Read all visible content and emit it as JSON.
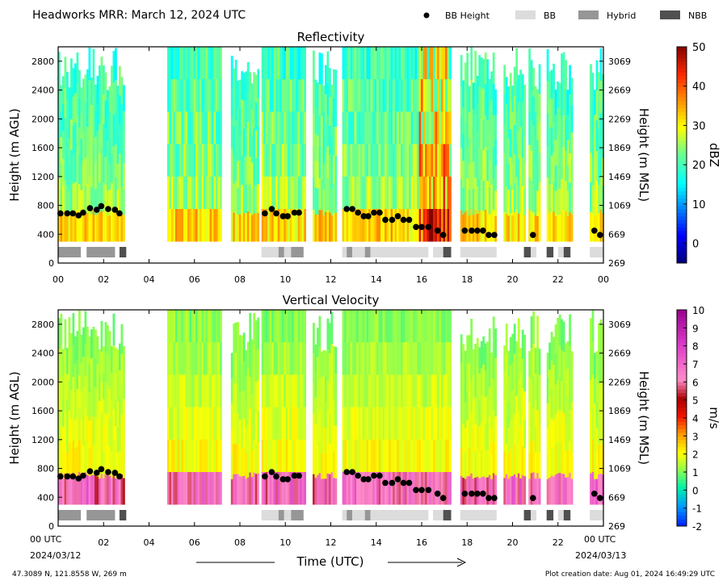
{
  "title": "Headworks MRR:  March 12, 2024 UTC",
  "legend": [
    {
      "label": "BB Height",
      "symbol": "dot",
      "color": "#000000"
    },
    {
      "label": "BB",
      "symbol": "bar",
      "color": "#dcdcdc"
    },
    {
      "label": "Hybrid",
      "symbol": "bar",
      "color": "#969696"
    },
    {
      "label": "NBB",
      "symbol": "bar",
      "color": "#505050"
    }
  ],
  "footer": {
    "location": "47.3089 N, 121.8558 W, 269 m",
    "created": "Plot creation date: Aug 01, 2024 16:49:29 UTC",
    "xlabel": "Time (UTC)",
    "start_time": "00 UTC",
    "start_date": "2024/03/12",
    "end_time": "00 UTC",
    "end_date": "2024/03/13"
  },
  "chart_data": [
    {
      "type": "heatmap",
      "title": "Reflectivity",
      "ylabel": "Height (m AGL)",
      "y2label": "Height (m MSL)",
      "colorbar_label": "dBZ",
      "x_ticks": [
        "00",
        "02",
        "04",
        "06",
        "08",
        "10",
        "12",
        "14",
        "16",
        "18",
        "20",
        "22",
        "00"
      ],
      "xlim": [
        0,
        24
      ],
      "ylim": [
        0,
        3000
      ],
      "y_ticks": [
        0,
        400,
        800,
        1200,
        1600,
        2000,
        2400,
        2800
      ],
      "y2_ticks": [
        "269",
        "669",
        "1069",
        "1469",
        "1869",
        "2269",
        "2669",
        "3069"
      ],
      "colorbar_range": [
        -5,
        50
      ],
      "colorbar_ticks": [
        0,
        10,
        20,
        30,
        40,
        50
      ],
      "colorscale": "jet",
      "echo_segments": [
        {
          "start": 0.0,
          "end": 2.85,
          "top": 3000
        },
        {
          "start": 4.8,
          "end": 7.2,
          "top": 3000
        },
        {
          "start": 7.6,
          "end": 8.8,
          "top": 3000
        },
        {
          "start": 8.95,
          "end": 10.85,
          "top": 3000
        },
        {
          "start": 11.2,
          "end": 12.2,
          "top": 3000
        },
        {
          "start": 12.5,
          "end": 17.3,
          "top": 3000
        },
        {
          "start": 17.7,
          "end": 19.3,
          "top": 3000
        },
        {
          "start": 19.6,
          "end": 20.5,
          "top": 3000
        },
        {
          "start": 20.7,
          "end": 21.2,
          "top": 3000
        },
        {
          "start": 21.5,
          "end": 22.6,
          "top": 3000
        },
        {
          "start": 23.4,
          "end": 24.0,
          "top": 3000
        }
      ],
      "bb_height": [
        [
          0.1,
          690
        ],
        [
          0.4,
          690
        ],
        [
          0.65,
          690
        ],
        [
          0.9,
          660
        ],
        [
          1.1,
          700
        ],
        [
          1.4,
          760
        ],
        [
          1.7,
          740
        ],
        [
          1.9,
          790
        ],
        [
          2.2,
          750
        ],
        [
          2.5,
          740
        ],
        [
          2.7,
          690
        ],
        [
          9.1,
          690
        ],
        [
          9.4,
          750
        ],
        [
          9.6,
          690
        ],
        [
          9.9,
          650
        ],
        [
          10.1,
          650
        ],
        [
          10.4,
          700
        ],
        [
          10.6,
          700
        ],
        [
          12.7,
          750
        ],
        [
          12.95,
          750
        ],
        [
          13.2,
          700
        ],
        [
          13.45,
          650
        ],
        [
          13.65,
          650
        ],
        [
          13.9,
          700
        ],
        [
          14.15,
          700
        ],
        [
          14.4,
          600
        ],
        [
          14.7,
          600
        ],
        [
          14.95,
          650
        ],
        [
          15.2,
          600
        ],
        [
          15.45,
          600
        ],
        [
          15.75,
          500
        ],
        [
          16.0,
          500
        ],
        [
          16.3,
          500
        ],
        [
          16.7,
          450
        ],
        [
          16.95,
          390
        ],
        [
          17.9,
          450
        ],
        [
          18.2,
          450
        ],
        [
          18.45,
          450
        ],
        [
          18.7,
          450
        ],
        [
          18.95,
          390
        ],
        [
          19.2,
          390
        ],
        [
          20.9,
          390
        ],
        [
          23.6,
          450
        ],
        [
          23.85,
          390
        ]
      ],
      "bb_type_bars": [
        {
          "start": 0.0,
          "end": 1.0,
          "type": "Hybrid"
        },
        {
          "start": 1.25,
          "end": 2.5,
          "type": "Hybrid"
        },
        {
          "start": 2.7,
          "end": 3.0,
          "type": "NBB"
        },
        {
          "start": 8.95,
          "end": 9.7,
          "type": "BB"
        },
        {
          "start": 9.7,
          "end": 9.95,
          "type": "Hybrid"
        },
        {
          "start": 9.95,
          "end": 10.25,
          "type": "BB"
        },
        {
          "start": 10.25,
          "end": 10.8,
          "type": "Hybrid"
        },
        {
          "start": 12.5,
          "end": 12.7,
          "type": "BB"
        },
        {
          "start": 12.7,
          "end": 12.95,
          "type": "Hybrid"
        },
        {
          "start": 12.95,
          "end": 13.5,
          "type": "BB"
        },
        {
          "start": 13.5,
          "end": 13.75,
          "type": "Hybrid"
        },
        {
          "start": 13.75,
          "end": 16.3,
          "type": "BB"
        },
        {
          "start": 16.5,
          "end": 16.95,
          "type": "BB"
        },
        {
          "start": 16.95,
          "end": 17.3,
          "type": "NBB"
        },
        {
          "start": 17.7,
          "end": 19.3,
          "type": "BB"
        },
        {
          "start": 20.5,
          "end": 20.8,
          "type": "NBB"
        },
        {
          "start": 20.8,
          "end": 21.05,
          "type": "BB"
        },
        {
          "start": 21.5,
          "end": 21.8,
          "type": "NBB"
        },
        {
          "start": 22.0,
          "end": 22.25,
          "type": "BB"
        },
        {
          "start": 22.25,
          "end": 22.55,
          "type": "NBB"
        },
        {
          "start": 23.4,
          "end": 24.0,
          "type": "BB"
        }
      ]
    },
    {
      "type": "heatmap",
      "title": "Vertical Velocity",
      "ylabel": "Height (m AGL)",
      "y2label": "Height (m MSL)",
      "colorbar_label": "m/s",
      "x_ticks": [
        "",
        "02",
        "04",
        "06",
        "08",
        "10",
        "12",
        "14",
        "16",
        "18",
        "20",
        "22",
        ""
      ],
      "xlim": [
        0,
        24
      ],
      "ylim": [
        0,
        3000
      ],
      "y_ticks": [
        0,
        400,
        800,
        1200,
        1600,
        2000,
        2400,
        2800
      ],
      "y2_ticks": [
        "269",
        "669",
        "1069",
        "1469",
        "1869",
        "2269",
        "2669",
        "3069"
      ],
      "colorbar_range": [
        -2,
        10
      ],
      "colorbar_ticks": [
        -2,
        -1,
        0,
        1,
        2,
        3,
        4,
        5,
        6,
        7,
        8,
        9,
        10
      ],
      "colorscale": "velocity",
      "echo_segments": [
        {
          "start": 0.0,
          "end": 2.85,
          "top": 3000
        },
        {
          "start": 4.8,
          "end": 7.2,
          "top": 3000
        },
        {
          "start": 7.6,
          "end": 8.8,
          "top": 3000
        },
        {
          "start": 8.95,
          "end": 10.85,
          "top": 3000
        },
        {
          "start": 11.2,
          "end": 12.2,
          "top": 3000
        },
        {
          "start": 12.5,
          "end": 17.3,
          "top": 3000
        },
        {
          "start": 17.7,
          "end": 19.3,
          "top": 3000
        },
        {
          "start": 19.6,
          "end": 20.5,
          "top": 3000
        },
        {
          "start": 20.7,
          "end": 21.2,
          "top": 3000
        },
        {
          "start": 21.5,
          "end": 22.6,
          "top": 3000
        },
        {
          "start": 23.4,
          "end": 24.0,
          "top": 3000
        }
      ],
      "bb_height": [
        [
          0.1,
          690
        ],
        [
          0.4,
          690
        ],
        [
          0.65,
          690
        ],
        [
          0.9,
          660
        ],
        [
          1.1,
          700
        ],
        [
          1.4,
          760
        ],
        [
          1.7,
          740
        ],
        [
          1.9,
          790
        ],
        [
          2.2,
          750
        ],
        [
          2.5,
          740
        ],
        [
          2.7,
          690
        ],
        [
          9.1,
          690
        ],
        [
          9.4,
          750
        ],
        [
          9.6,
          690
        ],
        [
          9.9,
          650
        ],
        [
          10.1,
          650
        ],
        [
          10.4,
          700
        ],
        [
          10.6,
          700
        ],
        [
          12.7,
          750
        ],
        [
          12.95,
          750
        ],
        [
          13.2,
          700
        ],
        [
          13.45,
          650
        ],
        [
          13.65,
          650
        ],
        [
          13.9,
          700
        ],
        [
          14.15,
          700
        ],
        [
          14.4,
          600
        ],
        [
          14.7,
          600
        ],
        [
          14.95,
          650
        ],
        [
          15.2,
          600
        ],
        [
          15.45,
          600
        ],
        [
          15.75,
          500
        ],
        [
          16.0,
          500
        ],
        [
          16.3,
          500
        ],
        [
          16.7,
          450
        ],
        [
          16.95,
          390
        ],
        [
          17.9,
          450
        ],
        [
          18.2,
          450
        ],
        [
          18.45,
          450
        ],
        [
          18.7,
          450
        ],
        [
          18.95,
          390
        ],
        [
          19.2,
          390
        ],
        [
          20.9,
          390
        ],
        [
          23.6,
          450
        ],
        [
          23.85,
          390
        ]
      ],
      "bb_type_bars": [
        {
          "start": 0.0,
          "end": 1.0,
          "type": "Hybrid"
        },
        {
          "start": 1.25,
          "end": 2.5,
          "type": "Hybrid"
        },
        {
          "start": 2.7,
          "end": 3.0,
          "type": "NBB"
        },
        {
          "start": 8.95,
          "end": 9.7,
          "type": "BB"
        },
        {
          "start": 9.7,
          "end": 9.95,
          "type": "Hybrid"
        },
        {
          "start": 9.95,
          "end": 10.25,
          "type": "BB"
        },
        {
          "start": 10.25,
          "end": 10.8,
          "type": "Hybrid"
        },
        {
          "start": 12.5,
          "end": 12.7,
          "type": "BB"
        },
        {
          "start": 12.7,
          "end": 12.95,
          "type": "Hybrid"
        },
        {
          "start": 12.95,
          "end": 13.5,
          "type": "BB"
        },
        {
          "start": 13.5,
          "end": 13.75,
          "type": "Hybrid"
        },
        {
          "start": 13.75,
          "end": 16.3,
          "type": "BB"
        },
        {
          "start": 16.5,
          "end": 16.95,
          "type": "BB"
        },
        {
          "start": 16.95,
          "end": 17.3,
          "type": "NBB"
        },
        {
          "start": 17.7,
          "end": 19.3,
          "type": "BB"
        },
        {
          "start": 20.5,
          "end": 20.8,
          "type": "NBB"
        },
        {
          "start": 20.8,
          "end": 21.05,
          "type": "BB"
        },
        {
          "start": 21.5,
          "end": 21.8,
          "type": "NBB"
        },
        {
          "start": 22.0,
          "end": 22.25,
          "type": "BB"
        },
        {
          "start": 22.25,
          "end": 22.55,
          "type": "NBB"
        },
        {
          "start": 23.4,
          "end": 24.0,
          "type": "BB"
        }
      ]
    }
  ]
}
